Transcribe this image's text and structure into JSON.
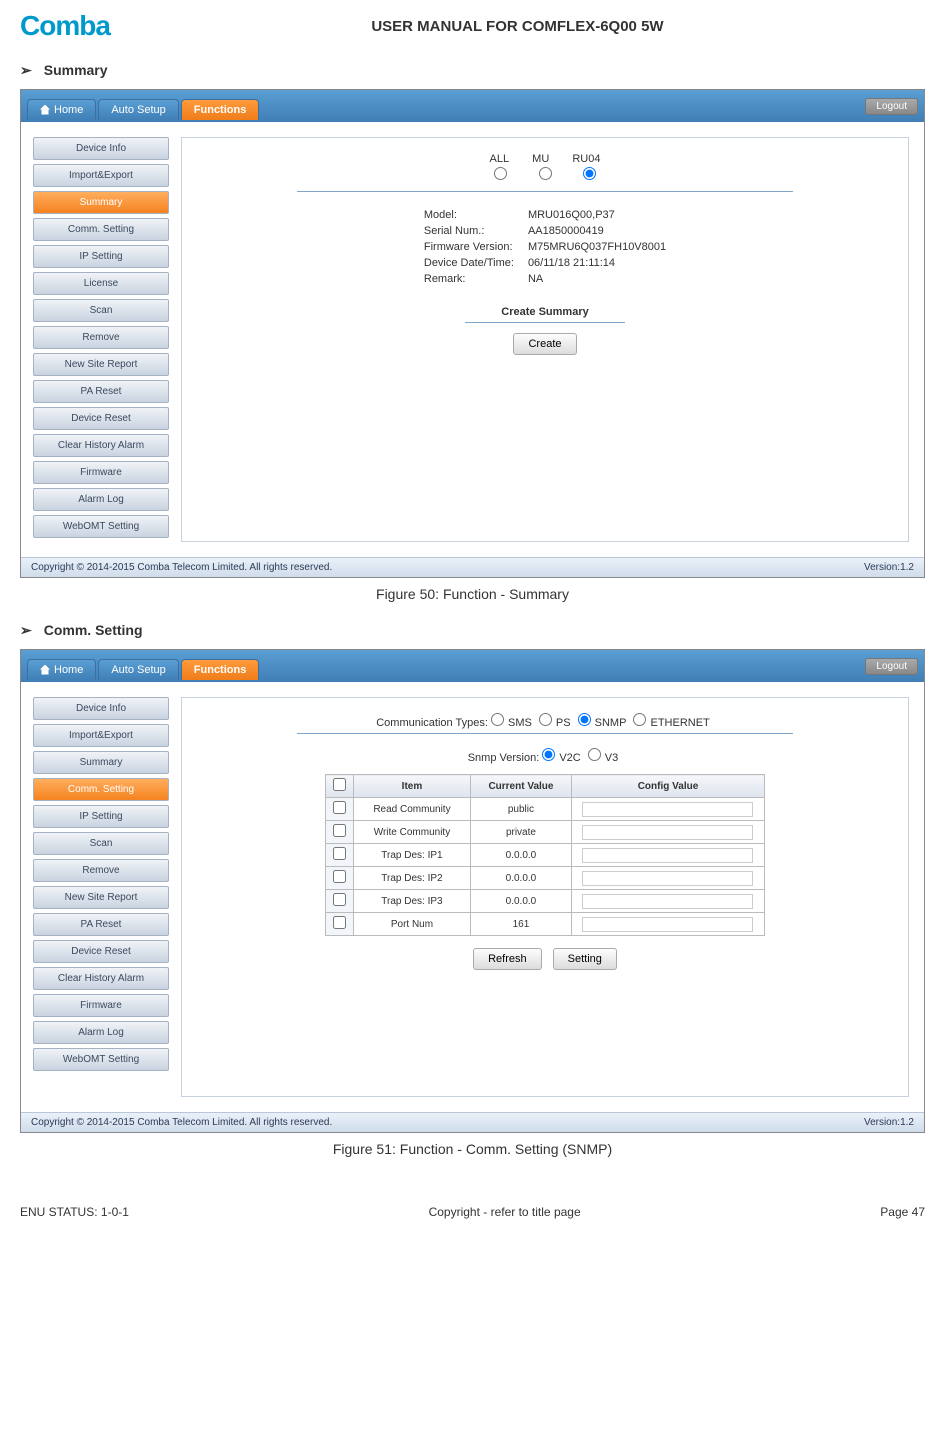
{
  "header": {
    "logo_text": "Comba",
    "manual_title": "USER MANUAL FOR COMFLEX-6Q00 5W"
  },
  "sections": {
    "summary_heading": "Summary",
    "comm_heading": "Comm. Setting"
  },
  "tabs": {
    "home": "Home",
    "auto_setup": "Auto Setup",
    "functions": "Functions",
    "logout": "Logout"
  },
  "sidebar": {
    "device_info": "Device Info",
    "import_export": "Import&Export",
    "summary": "Summary",
    "comm_setting": "Comm. Setting",
    "ip_setting": "IP Setting",
    "license": "License",
    "scan": "Scan",
    "remove": "Remove",
    "new_site_report": "New Site Report",
    "pa_reset": "PA Reset",
    "device_reset": "Device Reset",
    "clear_history_alarm": "Clear History Alarm",
    "firmware": "Firmware",
    "alarm_log": "Alarm Log",
    "webomt_setting": "WebOMT Setting"
  },
  "summary": {
    "radio_all": "ALL",
    "radio_mu": "MU",
    "radio_ru04": "RU04",
    "model_label": "Model:",
    "model_value": "MRU016Q00,P37",
    "serial_label": "Serial Num.:",
    "serial_value": "AA1850000419",
    "fw_label": "Firmware Version:",
    "fw_value": "M75MRU6Q037FH10V8001",
    "date_label": "Device Date/Time:",
    "date_value": "06/11/18 21:11:14",
    "remark_label": "Remark:",
    "remark_value": "NA",
    "create_title": "Create Summary",
    "create_btn": "Create"
  },
  "comm": {
    "types_label": "Communication Types:",
    "type_sms": "SMS",
    "type_ps": "PS",
    "type_snmp": "SNMP",
    "type_eth": "ETHERNET",
    "snmp_label": "Snmp Version:",
    "snmp_v2c": "V2C",
    "snmp_v3": "V3",
    "th_item": "Item",
    "th_current": "Current Value",
    "th_config": "Config Value",
    "rows": {
      "r0_item": "Read Community",
      "r0_val": "public",
      "r1_item": "Write Community",
      "r1_val": "private",
      "r2_item": "Trap Des: IP1",
      "r2_val": "0.0.0.0",
      "r3_item": "Trap Des: IP2",
      "r3_val": "0.0.0.0",
      "r4_item": "Trap Des: IP3",
      "r4_val": "0.0.0.0",
      "r5_item": "Port Num",
      "r5_val": "161"
    },
    "refresh": "Refresh",
    "setting": "Setting"
  },
  "footer": {
    "copyright": "Copyright © 2014-2015 Comba Telecom Limited. All rights reserved.",
    "version": "Version:1.2"
  },
  "captions": {
    "fig50": "Figure 50: Function - Summary",
    "fig51": "Figure 51: Function - Comm. Setting (SNMP)"
  },
  "page_footer": {
    "status": "ENU STATUS: 1-0-1",
    "center": "Copyright - refer to title page",
    "page": "Page 47"
  }
}
